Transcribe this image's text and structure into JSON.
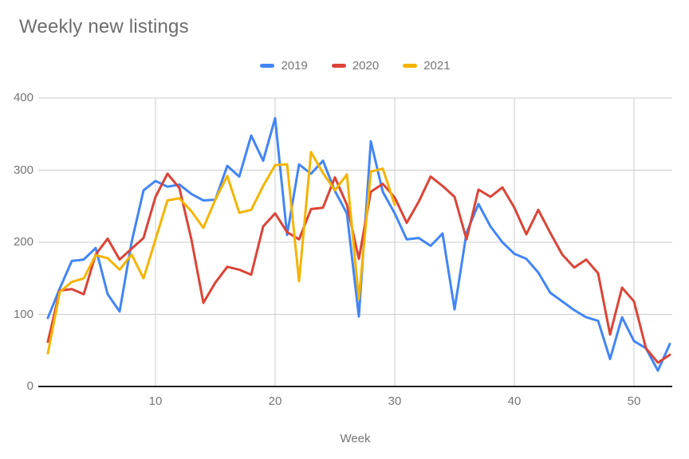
{
  "title": "Weekly new listings",
  "x_axis_title": "Week",
  "legend": {
    "items": [
      {
        "label": "2019",
        "color": "#4285F4"
      },
      {
        "label": "2020",
        "color": "#DB4437"
      },
      {
        "label": "2021",
        "color": "#F4B400"
      }
    ]
  },
  "axes": {
    "y_tick_labels": [
      "0",
      "100",
      "200",
      "300",
      "400"
    ],
    "x_tick_labels": [
      "10",
      "20",
      "30",
      "40",
      "50"
    ]
  },
  "colors": {
    "grid": "#cccccc",
    "axis_line": "#212121",
    "tick_text": "#757575",
    "title_text": "#6d6d6d",
    "series_2019": "#4285F4",
    "series_2020": "#DB4437",
    "series_2021": "#F4B400"
  },
  "chart_data": {
    "type": "line",
    "title": "Weekly new listings",
    "xlabel": "Week",
    "ylabel": "",
    "x_unit": "week number, first point = week 1",
    "xlim": [
      1,
      53
    ],
    "ylim": [
      0,
      400
    ],
    "x_tick_values": [
      10,
      20,
      30,
      40,
      50
    ],
    "y_tick_values": [
      0,
      100,
      200,
      300,
      400
    ],
    "grid": true,
    "legend_position": "top-center",
    "series": [
      {
        "name": "2019",
        "color": "#4285F4",
        "first_week": 1,
        "values": [
          95,
          136,
          174,
          176,
          192,
          128,
          104,
          200,
          272,
          285,
          277,
          280,
          267,
          258,
          259,
          306,
          291,
          348,
          313,
          372,
          210,
          308,
          295,
          313,
          271,
          240,
          97,
          340,
          270,
          240,
          204,
          206,
          195,
          212,
          107,
          213,
          253,
          222,
          200,
          184,
          177,
          158,
          130,
          118,
          106,
          96,
          91,
          38,
          96,
          63,
          53,
          22,
          59
        ]
      },
      {
        "name": "2020",
        "color": "#DB4437",
        "first_week": 1,
        "values": [
          62,
          133,
          135,
          128,
          183,
          205,
          176,
          191,
          206,
          263,
          295,
          275,
          204,
          116,
          144,
          166,
          162,
          155,
          222,
          240,
          214,
          204,
          246,
          248,
          290,
          252,
          177,
          270,
          281,
          262,
          227,
          256,
          291,
          278,
          263,
          204,
          273,
          263,
          276,
          248,
          211,
          245,
          213,
          183,
          165,
          176,
          157,
          72,
          137,
          118,
          53,
          33,
          44
        ]
      },
      {
        "name": "2021",
        "color": "#F4B400",
        "first_week": 1,
        "values": [
          46,
          131,
          145,
          150,
          182,
          178,
          162,
          183,
          150,
          204,
          258,
          261,
          243,
          220,
          259,
          292,
          241,
          245,
          278,
          307,
          308,
          146,
          325,
          296,
          272,
          294,
          121,
          298,
          302,
          252
        ]
      }
    ]
  }
}
